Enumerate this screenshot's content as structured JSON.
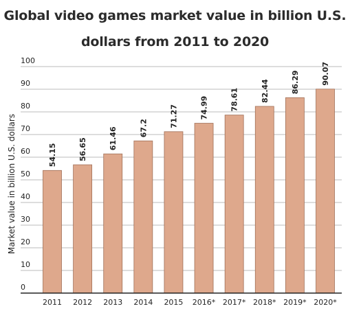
{
  "chart_data": {
    "type": "bar",
    "title_lines": [
      "Global video games market value in billion U.S.",
      "dollars from 2011 to 2020"
    ],
    "categories": [
      "2011",
      "2012",
      "2013",
      "2014",
      "2015",
      "2016*",
      "2017*",
      "2018*",
      "2019*",
      "2020*"
    ],
    "values": [
      54.15,
      56.65,
      61.46,
      67.2,
      71.27,
      74.99,
      78.61,
      82.44,
      86.29,
      90.07
    ],
    "value_labels": [
      "54.15",
      "56.65",
      "61.46",
      "67.2",
      "71.27",
      "74.99",
      "78.61",
      "82.44",
      "86.29",
      "90.07"
    ],
    "xlabel": "",
    "ylabel": "Market value in billion U.S. dollars",
    "ylim": [
      0,
      100
    ],
    "yticks": [
      0,
      10,
      20,
      30,
      40,
      50,
      60,
      70,
      80,
      90,
      100
    ],
    "grid": true,
    "bar_color": "#dea88c",
    "bar_edge_color": "#a07058",
    "grid_color": "#bbbbbb"
  }
}
